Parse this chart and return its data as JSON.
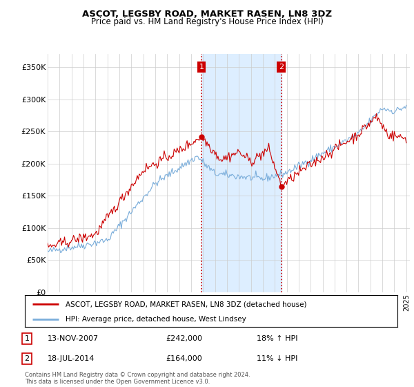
{
  "title": "ASCOT, LEGSBY ROAD, MARKET RASEN, LN8 3DZ",
  "subtitle": "Price paid vs. HM Land Registry's House Price Index (HPI)",
  "ylim": [
    0,
    370000
  ],
  "yticks": [
    0,
    50000,
    100000,
    150000,
    200000,
    250000,
    300000,
    350000
  ],
  "ytick_labels": [
    "£0",
    "£50K",
    "£100K",
    "£150K",
    "£200K",
    "£250K",
    "£300K",
    "£350K"
  ],
  "legend_line1": "ASCOT, LEGSBY ROAD, MARKET RASEN, LN8 3DZ (detached house)",
  "legend_line2": "HPI: Average price, detached house, West Lindsey",
  "transaction1_date": "13-NOV-2007",
  "transaction1_price": "£242,000",
  "transaction1_hpi": "18% ↑ HPI",
  "transaction2_date": "18-JUL-2014",
  "transaction2_price": "£164,000",
  "transaction2_hpi": "11% ↓ HPI",
  "footer": "Contains HM Land Registry data © Crown copyright and database right 2024.\nThis data is licensed under the Open Government Licence v3.0.",
  "red_color": "#cc0000",
  "blue_color": "#7aadda",
  "shade_color": "#ddeeff",
  "marker1_x": 2007.87,
  "marker1_y": 242000,
  "marker2_x": 2014.54,
  "marker2_y": 164000,
  "vline1_x": 2007.87,
  "vline2_x": 2014.54,
  "xlim_left": 1995,
  "xlim_right": 2025.3
}
